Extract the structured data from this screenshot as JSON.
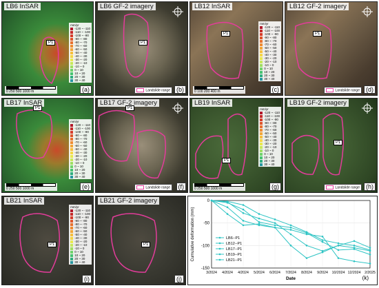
{
  "panels": [
    {
      "id": "a",
      "title": "LB6 InSAR",
      "label": "(a)",
      "point": "P1",
      "scale": "0  250  500   1000 m",
      "legend_title": "mm/yr"
    },
    {
      "id": "b",
      "title": "LB6 GF-2 imagery",
      "label": "(b)",
      "point": "P1",
      "landslide_range": "Landslide range"
    },
    {
      "id": "c",
      "title": "LB12 InSAR",
      "label": "(c)",
      "point": "P1",
      "scale": "0  100  200   400 m",
      "legend_title": "mm/yr"
    },
    {
      "id": "d",
      "title": "LB12 GF-2 imagery",
      "label": "(d)",
      "point": "P1",
      "landslide_range": "Landslide range"
    },
    {
      "id": "e",
      "title": "LB17 InSAR",
      "label": "(e)",
      "point": "P1",
      "scale": "0  250  500   1000 m",
      "legend_title": "mm/yr"
    },
    {
      "id": "f",
      "title": "LB17 GF-2 imagery",
      "label": "(f)",
      "point": "P1",
      "landslide_range": "Landslide range"
    },
    {
      "id": "g",
      "title": "LB19 InSAR",
      "label": "(g)",
      "point": "P1",
      "scale": "0  250  500   1000 m",
      "legend_title": "mm/yr"
    },
    {
      "id": "h",
      "title": "LB19 GF-2 imagery",
      "label": "(h)",
      "point": "P1",
      "landslide_range": "Landslide range"
    },
    {
      "id": "i",
      "title": "LB21 InSAR",
      "label": "(i)",
      "point": "P1",
      "legend_title": "mm/yr"
    },
    {
      "id": "j",
      "title": "LB21 GF-2 imagery",
      "label": "(j)",
      "point": "P1",
      "landslide_range": "Landslide range"
    }
  ],
  "legend_rows": [
    {
      "text": "-120 ~ -110",
      "color": "#b2182b"
    },
    {
      "text": "-110 ~ -100",
      "color": "#c62a2a"
    },
    {
      "text": "-100 ~ -90",
      "color": "#d73c2a"
    },
    {
      "text": "-90 ~ -80",
      "color": "#e0552b"
    },
    {
      "text": "-80 ~ -70",
      "color": "#e8712e"
    },
    {
      "text": "-70 ~ -60",
      "color": "#ef8c32"
    },
    {
      "text": "-60 ~ -50",
      "color": "#f4a637"
    },
    {
      "text": "-50 ~ -40",
      "color": "#f7bf3d"
    },
    {
      "text": "-40 ~ -30",
      "color": "#f6d746"
    },
    {
      "text": "-30 ~ -20",
      "color": "#e9e94f"
    },
    {
      "text": "-20 ~ -10",
      "color": "#c8e85a"
    },
    {
      "text": "-10 ~ 0",
      "color": "#9fdf63"
    },
    {
      "text": "0 ~ 10",
      "color": "#6fd36b"
    },
    {
      "text": "10 ~ 20",
      "color": "#46c470"
    },
    {
      "text": "20 ~ 30",
      "color": "#2fae7f"
    },
    {
      "text": "30 ~ 40",
      "color": "#2897a0"
    }
  ],
  "colors": {
    "landslide_outline": "#e43c9b",
    "chart_line": "#2ec4c4"
  },
  "chart_data": {
    "type": "line",
    "label": "(k)",
    "xlabel": "Date",
    "ylabel": "Cumulative deformation (mm)",
    "x": [
      "3/2024",
      "4/2024",
      "4/2024",
      "5/2024",
      "6/2024",
      "7/2024",
      "8/2024",
      "9/2024",
      "10/2024",
      "12/2024",
      "2/2025"
    ],
    "ylim": [
      -150,
      0
    ],
    "yticks": [
      0,
      -50,
      -100,
      -150
    ],
    "series": [
      {
        "name": "LB6--P1",
        "values": [
          0,
          -2,
          -10,
          -30,
          -42,
          -55,
          -70,
          -88,
          -95,
          -100,
          -110
        ]
      },
      {
        "name": "LB12--P1",
        "values": [
          0,
          -5,
          -20,
          -48,
          -55,
          -60,
          -72,
          -92,
          -110,
          -108,
          -120
        ]
      },
      {
        "name": "LB17--P1",
        "values": [
          0,
          -3,
          -28,
          -40,
          -50,
          -75,
          -100,
          -112,
          -100,
          -105,
          -112
        ]
      },
      {
        "name": "LB19--P1",
        "values": [
          0,
          -15,
          -45,
          -55,
          -60,
          -65,
          -75,
          -80,
          -128,
          -135,
          -140
        ]
      },
      {
        "name": "LB21--P1",
        "values": [
          0,
          -30,
          -55,
          -52,
          -60,
          -100,
          -128,
          -115,
          -100,
          -90,
          -105
        ]
      }
    ],
    "grid": true,
    "legend_position": "bottom-left"
  }
}
